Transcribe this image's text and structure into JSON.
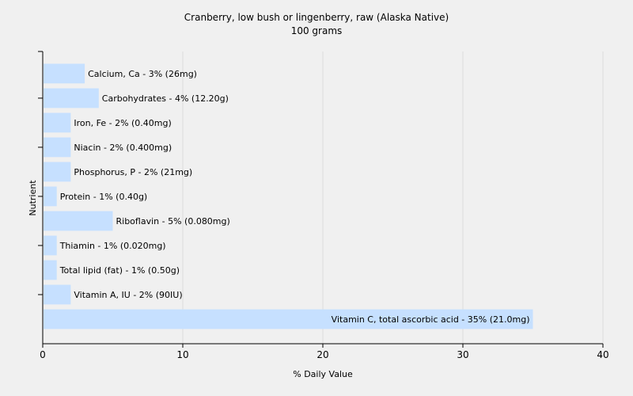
{
  "chart_data": {
    "type": "bar",
    "orientation": "horizontal",
    "title": "Cranberry, low bush or lingenberry, raw (Alaska Native)",
    "subtitle": "100 grams",
    "xlabel": "% Daily Value",
    "ylabel": "Nutrient",
    "xlim": [
      0,
      40
    ],
    "xticks": [
      0,
      10,
      20,
      30,
      40
    ],
    "grid": true,
    "categories": [
      "Calcium, Ca",
      "Carbohydrates",
      "Iron, Fe",
      "Niacin",
      "Phosphorus, P",
      "Protein",
      "Riboflavin",
      "Thiamin",
      "Total lipid (fat)",
      "Vitamin A, IU",
      "Vitamin C, total ascorbic acid"
    ],
    "values": [
      3,
      4,
      2,
      2,
      2,
      1,
      5,
      1,
      1,
      2,
      35
    ],
    "labels": [
      "Calcium, Ca - 3% (26mg)",
      "Carbohydrates - 4% (12.20g)",
      "Iron, Fe - 2% (0.40mg)",
      "Niacin - 2% (0.400mg)",
      "Phosphorus, P - 2% (21mg)",
      "Protein - 1% (0.40g)",
      "Riboflavin - 5% (0.080mg)",
      "Thiamin - 1% (0.020mg)",
      "Total lipid (fat) - 1% (0.50g)",
      "Vitamin A, IU - 2% (90IU)",
      "Vitamin C, total ascorbic acid - 35% (21.0mg)"
    ],
    "colors": {
      "bar": "#c6e0ff",
      "grid": "#dcdcdc",
      "axis": "#000000",
      "background": "#f0f0f0"
    }
  }
}
